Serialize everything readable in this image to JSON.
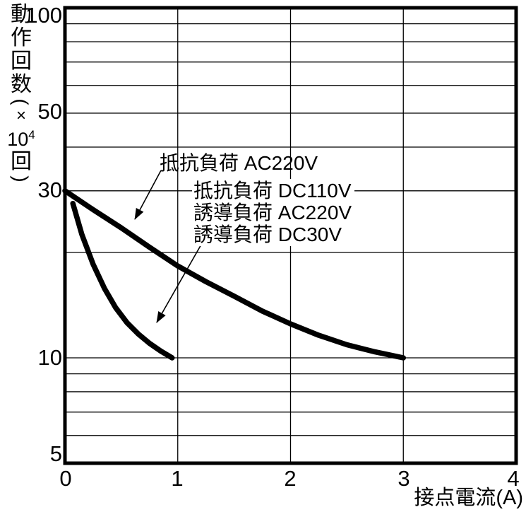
{
  "chart_data": {
    "type": "line",
    "title": "",
    "x_axis": {
      "label": "接点電流(A)",
      "scale": "linear",
      "min": 0,
      "max": 4,
      "ticks": [
        "0",
        "1",
        "2",
        "3",
        "4"
      ],
      "gridlines": [
        1,
        2,
        3
      ]
    },
    "y_axis": {
      "label": "動作回数(×10⁴回)",
      "label_parts": {
        "kanji": [
          "動",
          "作",
          "回",
          "数"
        ],
        "paren_open": "(",
        "times": "×",
        "power_base": "10",
        "power_exp": "4",
        "unit": "回",
        "paren_close": ")"
      },
      "scale": "log",
      "min": 5,
      "max": 100,
      "ticks": [
        "100",
        "50",
        "30",
        "10",
        "5"
      ],
      "gridlines": [
        90,
        80,
        70,
        60,
        50,
        40,
        30,
        20,
        10,
        9,
        8,
        7,
        6
      ]
    },
    "series": [
      {
        "name": "抵抗負荷 AC220V",
        "points": [
          [
            0,
            30
          ],
          [
            0.25,
            26.5
          ],
          [
            0.5,
            23.5
          ],
          [
            0.75,
            20.7
          ],
          [
            1,
            18.3
          ],
          [
            1.25,
            16.5
          ],
          [
            1.5,
            15.0
          ],
          [
            1.75,
            13.6
          ],
          [
            2,
            12.5
          ],
          [
            2.25,
            11.6
          ],
          [
            2.5,
            10.9
          ],
          [
            2.75,
            10.4
          ],
          [
            3,
            10
          ]
        ]
      },
      {
        "name": "抵抗負荷 DC110V / 誘導負荷 AC220V / 誘導負荷 DC30V",
        "points": [
          [
            0.07,
            27.6
          ],
          [
            0.15,
            22.5
          ],
          [
            0.25,
            18.5
          ],
          [
            0.35,
            15.8
          ],
          [
            0.45,
            13.9
          ],
          [
            0.55,
            12.6
          ],
          [
            0.65,
            11.7
          ],
          [
            0.75,
            11.0
          ],
          [
            0.85,
            10.45
          ],
          [
            0.95,
            10
          ]
        ]
      }
    ],
    "annotations": {
      "callout_1": "抵抗負荷 AC220V",
      "callout_group": [
        "抵抗負荷 DC110V",
        "誘導負荷 AC220V",
        "誘導負荷 DC30V"
      ]
    },
    "colors": {
      "curve": "#000000",
      "grid": "#000000",
      "background": "#ffffff"
    }
  }
}
